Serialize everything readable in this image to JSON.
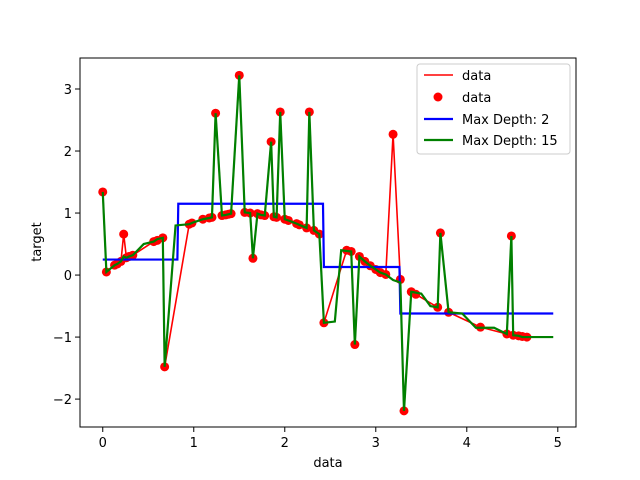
{
  "chart_data": {
    "type": "line",
    "xlabel": "data",
    "ylabel": "target",
    "xlim": [
      -0.25,
      5.2
    ],
    "ylim": [
      -2.45,
      3.5
    ],
    "x_ticks": [
      0,
      1,
      2,
      3,
      4,
      5
    ],
    "y_ticks": [
      -2,
      -1,
      0,
      1,
      2,
      3
    ],
    "grid": false,
    "legend_position": "top-right",
    "legend": [
      "data",
      "data",
      "Max Depth: 2",
      "Max Depth: 15"
    ],
    "colors": {
      "data_line": "#ff0000",
      "data_points": "#ff0000",
      "depth2": "#0000ff",
      "depth15": "#008000"
    },
    "series": [
      {
        "name": "data",
        "kind": "line",
        "x": [
          0.0,
          0.04,
          0.13,
          0.16,
          0.2,
          0.23,
          0.26,
          0.29,
          0.33,
          0.56,
          0.6,
          0.66,
          0.68,
          0.95,
          0.98,
          1.1,
          1.17,
          1.2,
          1.24,
          1.31,
          1.35,
          1.38,
          1.41,
          1.5,
          1.56,
          1.62,
          1.65,
          1.7,
          1.74,
          1.78,
          1.85,
          1.88,
          1.91,
          1.95,
          2.0,
          2.04,
          2.13,
          2.16,
          2.24,
          2.27,
          2.32,
          2.38,
          2.43,
          2.68,
          2.73,
          2.77,
          2.82,
          2.88,
          2.94,
          3.0,
          3.05,
          3.11,
          3.19,
          3.27,
          3.31,
          3.39,
          3.44,
          3.68,
          3.71,
          3.8,
          4.15,
          4.44,
          4.49,
          4.51,
          4.57,
          4.61,
          4.66
        ],
        "y": [
          1.34,
          0.05,
          0.16,
          0.18,
          0.22,
          0.66,
          0.28,
          0.3,
          0.32,
          0.54,
          0.56,
          0.6,
          -1.48,
          0.82,
          0.84,
          0.9,
          0.92,
          0.93,
          2.61,
          0.96,
          0.97,
          0.98,
          0.99,
          3.22,
          1.01,
          1.0,
          0.27,
          0.99,
          0.97,
          0.96,
          2.15,
          0.94,
          0.93,
          2.63,
          0.9,
          0.88,
          0.83,
          0.81,
          0.76,
          2.63,
          0.72,
          0.66,
          -0.77,
          0.4,
          0.38,
          -1.12,
          0.3,
          0.22,
          0.15,
          0.09,
          0.04,
          0.01,
          2.27,
          -0.07,
          -2.19,
          -0.27,
          -0.31,
          -0.52,
          0.68,
          -0.6,
          -0.84,
          -0.95,
          0.63,
          -0.97,
          -0.98,
          -0.99,
          -1.0
        ]
      },
      {
        "name": "data",
        "kind": "scatter",
        "x": [
          0.0,
          0.04,
          0.13,
          0.16,
          0.2,
          0.23,
          0.26,
          0.29,
          0.33,
          0.56,
          0.6,
          0.66,
          0.68,
          0.95,
          0.98,
          1.1,
          1.17,
          1.2,
          1.24,
          1.31,
          1.35,
          1.38,
          1.41,
          1.5,
          1.56,
          1.62,
          1.65,
          1.7,
          1.74,
          1.78,
          1.85,
          1.88,
          1.91,
          1.95,
          2.0,
          2.04,
          2.13,
          2.16,
          2.24,
          2.27,
          2.32,
          2.38,
          2.43,
          2.68,
          2.73,
          2.77,
          2.82,
          2.88,
          2.94,
          3.0,
          3.05,
          3.11,
          3.19,
          3.27,
          3.31,
          3.39,
          3.44,
          3.68,
          3.71,
          3.8,
          4.15,
          4.44,
          4.49,
          4.51,
          4.57,
          4.61,
          4.66
        ],
        "y": [
          1.34,
          0.05,
          0.16,
          0.18,
          0.22,
          0.66,
          0.28,
          0.3,
          0.32,
          0.54,
          0.56,
          0.6,
          -1.48,
          0.82,
          0.84,
          0.9,
          0.92,
          0.93,
          2.61,
          0.96,
          0.97,
          0.98,
          0.99,
          3.22,
          1.01,
          1.0,
          0.27,
          0.99,
          0.97,
          0.96,
          2.15,
          0.94,
          0.93,
          2.63,
          0.9,
          0.88,
          0.83,
          0.81,
          0.76,
          2.63,
          0.72,
          0.66,
          -0.77,
          0.4,
          0.38,
          -1.12,
          0.3,
          0.22,
          0.15,
          0.09,
          0.04,
          0.01,
          2.27,
          -0.07,
          -2.19,
          -0.27,
          -0.31,
          -0.52,
          0.68,
          -0.6,
          -0.84,
          -0.95,
          0.63,
          -0.97,
          -0.98,
          -0.99,
          -1.0
        ]
      },
      {
        "name": "Max Depth: 2",
        "kind": "step",
        "x": [
          0.0,
          0.82,
          0.83,
          2.42,
          2.43,
          3.26,
          3.27,
          4.95
        ],
        "y": [
          0.25,
          0.25,
          1.15,
          1.15,
          0.13,
          0.13,
          -0.62,
          -0.62
        ]
      },
      {
        "name": "Max Depth: 15",
        "kind": "step",
        "x": [
          0.0,
          0.04,
          0.13,
          0.16,
          0.2,
          0.23,
          0.26,
          0.29,
          0.33,
          0.45,
          0.56,
          0.6,
          0.66,
          0.68,
          0.8,
          0.95,
          0.98,
          1.1,
          1.17,
          1.2,
          1.24,
          1.31,
          1.35,
          1.38,
          1.41,
          1.5,
          1.56,
          1.62,
          1.65,
          1.7,
          1.74,
          1.78,
          1.85,
          1.88,
          1.91,
          1.95,
          2.0,
          2.04,
          2.13,
          2.16,
          2.24,
          2.27,
          2.32,
          2.38,
          2.43,
          2.55,
          2.62,
          2.73,
          2.77,
          2.82,
          2.88,
          2.94,
          3.0,
          3.05,
          3.11,
          3.19,
          3.27,
          3.31,
          3.39,
          3.5,
          3.6,
          3.68,
          3.71,
          3.8,
          3.95,
          4.1,
          4.3,
          4.44,
          4.49,
          4.51,
          4.57,
          4.61,
          4.66,
          4.95
        ],
        "y": [
          1.34,
          0.05,
          0.16,
          0.18,
          0.22,
          0.3,
          0.28,
          0.3,
          0.32,
          0.5,
          0.54,
          0.58,
          0.6,
          -1.48,
          0.8,
          0.82,
          0.84,
          0.9,
          0.92,
          0.93,
          2.61,
          0.96,
          0.97,
          0.98,
          0.99,
          3.22,
          1.01,
          1.0,
          0.27,
          0.99,
          0.97,
          0.96,
          2.15,
          0.94,
          0.93,
          2.63,
          0.9,
          0.88,
          0.83,
          0.81,
          0.76,
          2.63,
          0.72,
          0.66,
          -0.77,
          -0.75,
          0.4,
          0.38,
          -1.12,
          0.3,
          0.22,
          0.15,
          0.09,
          0.04,
          0.01,
          -0.08,
          -0.12,
          -2.19,
          -0.27,
          -0.3,
          -0.5,
          -0.52,
          0.68,
          -0.6,
          -0.62,
          -0.85,
          -0.85,
          -0.95,
          0.63,
          -0.97,
          -0.98,
          -1.0,
          -1.0,
          -1.0
        ]
      }
    ]
  }
}
